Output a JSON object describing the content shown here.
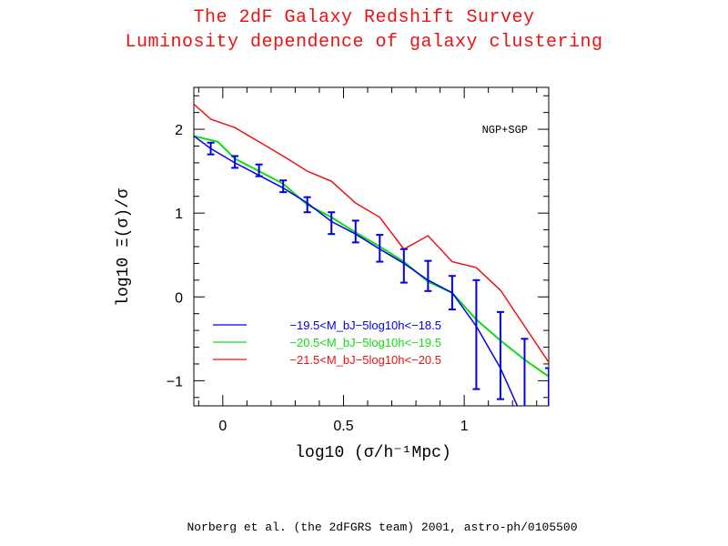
{
  "header": {
    "title": "The 2dF Galaxy Redshift Survey",
    "subtitle": "Luminosity dependence of galaxy clustering"
  },
  "credit": "Norberg et al. (the 2dFGRS team) 2001, astro-ph/0105500",
  "chart_data": {
    "type": "line",
    "annotation": "NGP+SGP",
    "xlabel": "log10 (σ/h⁻¹Mpc)",
    "ylabel": "log10 Ξ(σ)/σ",
    "xlim": [
      -0.12,
      1.35
    ],
    "ylim": [
      -1.3,
      2.5
    ],
    "x_ticks": [
      0,
      0.5,
      1
    ],
    "x_tick_labels": [
      "0",
      "0.5",
      "1"
    ],
    "y_ticks": [
      -1,
      0,
      1,
      2
    ],
    "y_tick_labels": [
      "−1",
      "0",
      "1",
      "2"
    ],
    "legend_position": "lower-left",
    "series": [
      {
        "name": "−19.5<M_bJ−5log10h<−18.5",
        "color": "#0000ee",
        "x": [
          -0.12,
          -0.05,
          0.05,
          0.15,
          0.25,
          0.35,
          0.45,
          0.55,
          0.65,
          0.75,
          0.85,
          0.95,
          1.05,
          1.15,
          1.22
        ],
        "y": [
          1.92,
          1.77,
          1.6,
          1.45,
          1.3,
          1.12,
          0.9,
          0.75,
          0.57,
          0.4,
          0.2,
          0.05,
          -0.35,
          -0.85,
          -1.3
        ],
        "errorbars": {
          "x": [
            -0.05,
            0.05,
            0.15,
            0.25,
            0.35,
            0.45,
            0.55,
            0.65,
            0.75,
            0.85,
            0.95,
            1.05,
            1.15,
            1.25,
            1.35
          ],
          "y": [
            1.77,
            1.61,
            1.51,
            1.32,
            1.1,
            0.88,
            0.78,
            0.58,
            0.37,
            0.25,
            0.05,
            -0.45,
            -0.7,
            -0.95,
            -1.1
          ],
          "err": [
            0.07,
            0.07,
            0.07,
            0.07,
            0.09,
            0.13,
            0.13,
            0.16,
            0.2,
            0.18,
            0.2,
            0.65,
            0.52,
            0.45,
            0.25
          ]
        }
      },
      {
        "name": "−20.5<M_bJ−5log10h<−19.5",
        "color": "#11dd11",
        "x": [
          -0.12,
          -0.02,
          0.05,
          0.15,
          0.25,
          0.35,
          0.45,
          0.55,
          0.65,
          0.75,
          0.85,
          0.95,
          1.05,
          1.15,
          1.25,
          1.35
        ],
        "y": [
          1.92,
          1.85,
          1.65,
          1.5,
          1.35,
          1.1,
          0.95,
          0.77,
          0.6,
          0.42,
          0.18,
          0.05,
          -0.27,
          -0.52,
          -0.75,
          -0.95
        ]
      },
      {
        "name": "−21.5<M_bJ−5log10h<−20.5",
        "color": "#ee1111",
        "x": [
          -0.12,
          -0.05,
          0.05,
          0.15,
          0.25,
          0.35,
          0.45,
          0.55,
          0.65,
          0.75,
          0.85,
          0.95,
          1.05,
          1.15,
          1.25,
          1.35
        ],
        "y": [
          2.3,
          2.12,
          2.02,
          1.85,
          1.68,
          1.5,
          1.38,
          1.12,
          0.95,
          0.57,
          0.73,
          0.42,
          0.35,
          0.08,
          -0.35,
          -0.78
        ]
      }
    ]
  }
}
